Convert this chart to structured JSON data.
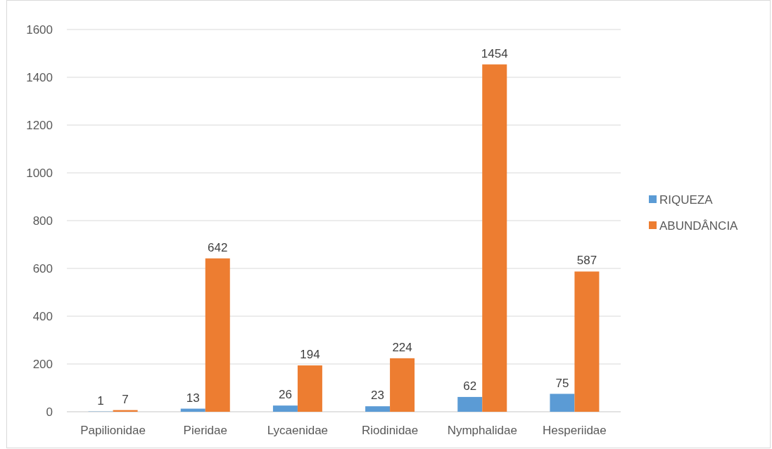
{
  "chart_data": {
    "type": "bar",
    "categories": [
      "Papilionidae",
      "Pieridae",
      "Lycaenidae",
      "Riodinidae",
      "Nymphalidae",
      "Hesperiidae"
    ],
    "series": [
      {
        "name": "RIQUEZA",
        "color": "#5b9bd5",
        "values": [
          1,
          13,
          26,
          23,
          62,
          75
        ]
      },
      {
        "name": "ABUNDÂNCIA",
        "color": "#ed7d31",
        "values": [
          7,
          642,
          194,
          224,
          1454,
          587
        ]
      }
    ],
    "ylim": [
      0,
      1600
    ],
    "yticks": [
      0,
      200,
      400,
      600,
      800,
      1000,
      1200,
      1400,
      1600
    ],
    "grid": "y",
    "legend": "right",
    "data_labels": true
  }
}
